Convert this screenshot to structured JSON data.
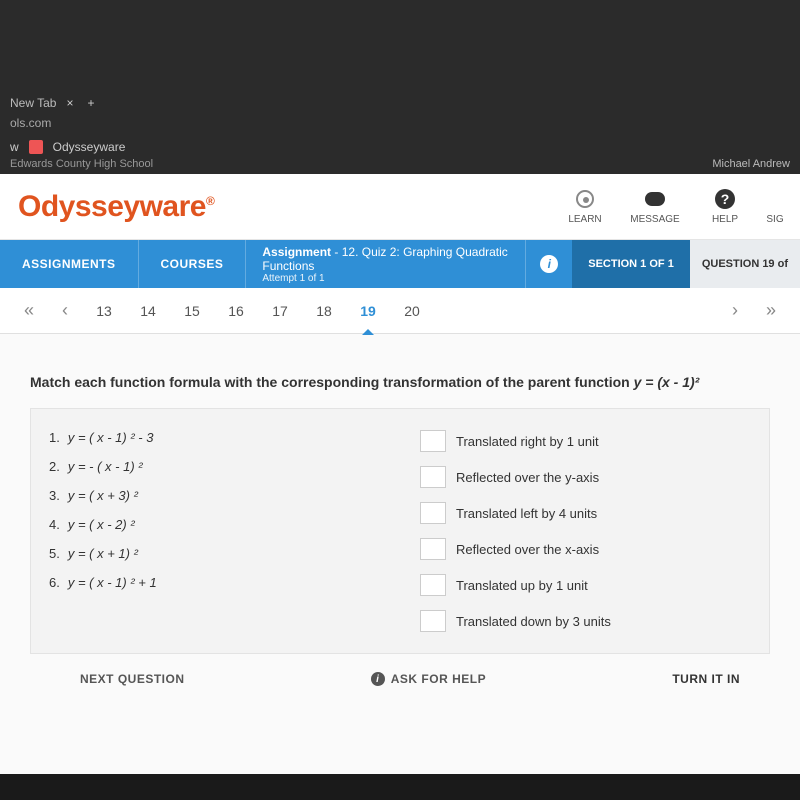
{
  "browser": {
    "tab_title": "New Tab",
    "address": "ols.com",
    "bookmark": "Odysseyware",
    "school": "Edwards County High School",
    "user": "Michael Andrew"
  },
  "header": {
    "logo": "Odysseyware",
    "actions": {
      "learn": "LEARN",
      "message": "MESSAGE",
      "help": "HELP",
      "sign": "SIG"
    }
  },
  "bluebar": {
    "assignments": "ASSIGNMENTS",
    "courses": "COURSES",
    "assignment_label": "Assignment",
    "assignment_title": "- 12. Quiz 2: Graphing Quadratic Functions",
    "attempt": "Attempt 1 of 1",
    "section": "SECTION 1 OF 1",
    "question": "QUESTION 19 of"
  },
  "qnav": {
    "numbers": [
      "13",
      "14",
      "15",
      "16",
      "17",
      "18",
      "19",
      "20"
    ],
    "active": "19"
  },
  "question": {
    "prompt_pre": "Match each function formula with the corresponding transformation of the parent function ",
    "prompt_fn": "y = (x - 1)²",
    "functions": [
      {
        "n": "1.",
        "f": "y = ( x - 1) ² - 3"
      },
      {
        "n": "2.",
        "f": "y = - ( x - 1) ²"
      },
      {
        "n": "3.",
        "f": "y = ( x + 3) ²"
      },
      {
        "n": "4.",
        "f": "y = ( x - 2) ²"
      },
      {
        "n": "5.",
        "f": "y = ( x + 1) ²"
      },
      {
        "n": "6.",
        "f": "y = ( x - 1) ² + 1"
      }
    ],
    "options": [
      "Translated right by 1 unit",
      "Reflected over the y-axis",
      "Translated left by 4 units",
      "Reflected over the x-axis",
      "Translated up by 1 unit",
      "Translated down by 3 units"
    ]
  },
  "footer": {
    "next": "NEXT QUESTION",
    "ask": "ASK FOR HELP",
    "turn": "TURN IT IN"
  }
}
